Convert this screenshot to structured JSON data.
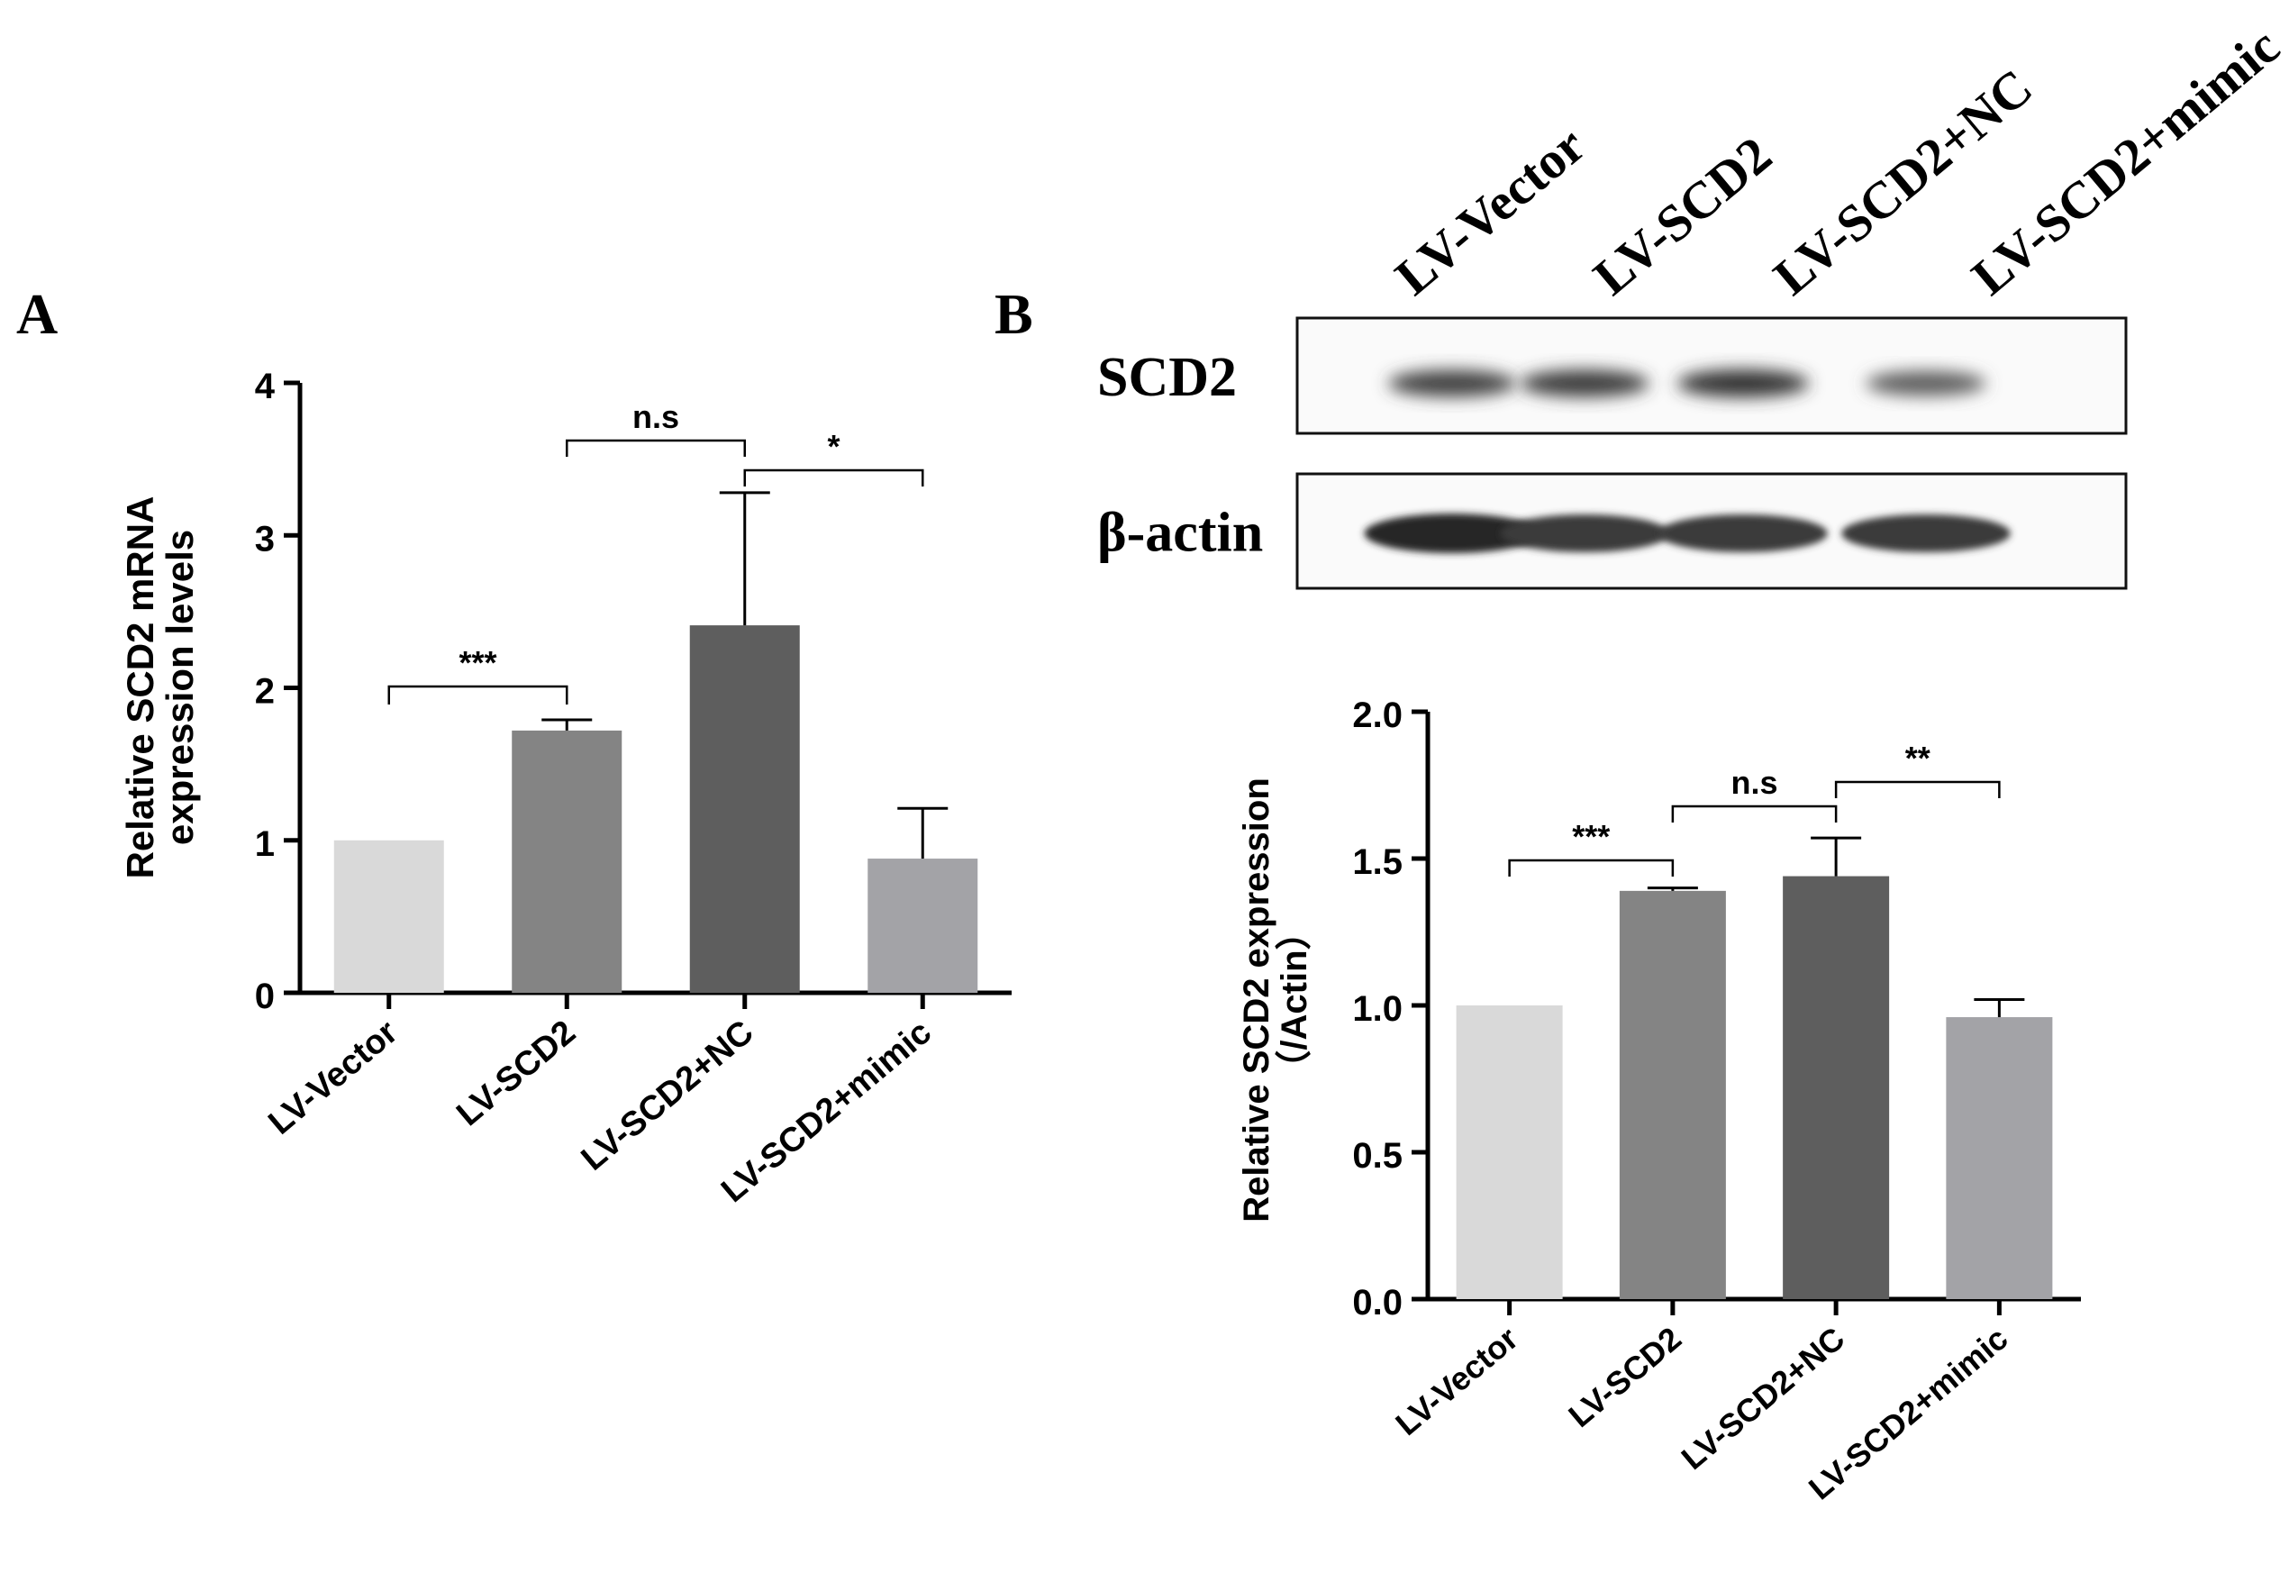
{
  "panels": {
    "a": {
      "letter": "A"
    },
    "b": {
      "letter": "B"
    }
  },
  "western_blot": {
    "lanes": [
      "LV-Vector",
      "LV-SCD2",
      "LV-SCD2+NC",
      "LV-SCD2+mimic"
    ],
    "rows": [
      {
        "label": "SCD2",
        "intensities": [
          0.78,
          0.82,
          0.9,
          0.55
        ]
      },
      {
        "label": "β-actin",
        "intensities": [
          1.0,
          0.85,
          0.85,
          0.85
        ]
      }
    ]
  },
  "chart_data": [
    {
      "type": "bar",
      "panel": "A",
      "categories": [
        "LV-Vector",
        "LV-SCD2",
        "LV-SCD2+NC",
        "LV-SCD2+mimic"
      ],
      "values": [
        1.0,
        1.72,
        2.41,
        0.88
      ],
      "errors": [
        0,
        0.07,
        0.87,
        0.33
      ],
      "colors": [
        "#d9d9d9",
        "#848484",
        "#5e5e5e",
        "#a3a3a7"
      ],
      "ylabel": "Relative SCD2 mRNA\nexpression levels",
      "ylim": [
        0,
        4
      ],
      "yticks": [
        "0",
        "1",
        "2",
        "3",
        "4"
      ],
      "significance": [
        {
          "from": 0,
          "to": 1,
          "label": "***"
        },
        {
          "from": 1,
          "to": 2,
          "label": "n.s"
        },
        {
          "from": 2,
          "to": 3,
          "label": "*"
        }
      ]
    },
    {
      "type": "bar",
      "panel": "B",
      "categories": [
        "LV-Vector",
        "LV-SCD2",
        "LV-SCD2+NC",
        "LV-SCD2+mimic"
      ],
      "values": [
        1.0,
        1.39,
        1.44,
        0.96
      ],
      "errors": [
        0,
        0.01,
        0.13,
        0.06
      ],
      "colors": [
        "#d9d9d9",
        "#848484",
        "#5e5e5e",
        "#a3a3a7"
      ],
      "ylabel": "Relative SCD2 expression\n（/Actin）",
      "ylim": [
        0,
        2.0
      ],
      "yticks": [
        "0.0",
        "0.5",
        "1.0",
        "1.5",
        "2.0"
      ],
      "significance": [
        {
          "from": 0,
          "to": 1,
          "label": "***"
        },
        {
          "from": 1,
          "to": 2,
          "label": "n.s"
        },
        {
          "from": 2,
          "to": 3,
          "label": "**"
        }
      ]
    }
  ]
}
